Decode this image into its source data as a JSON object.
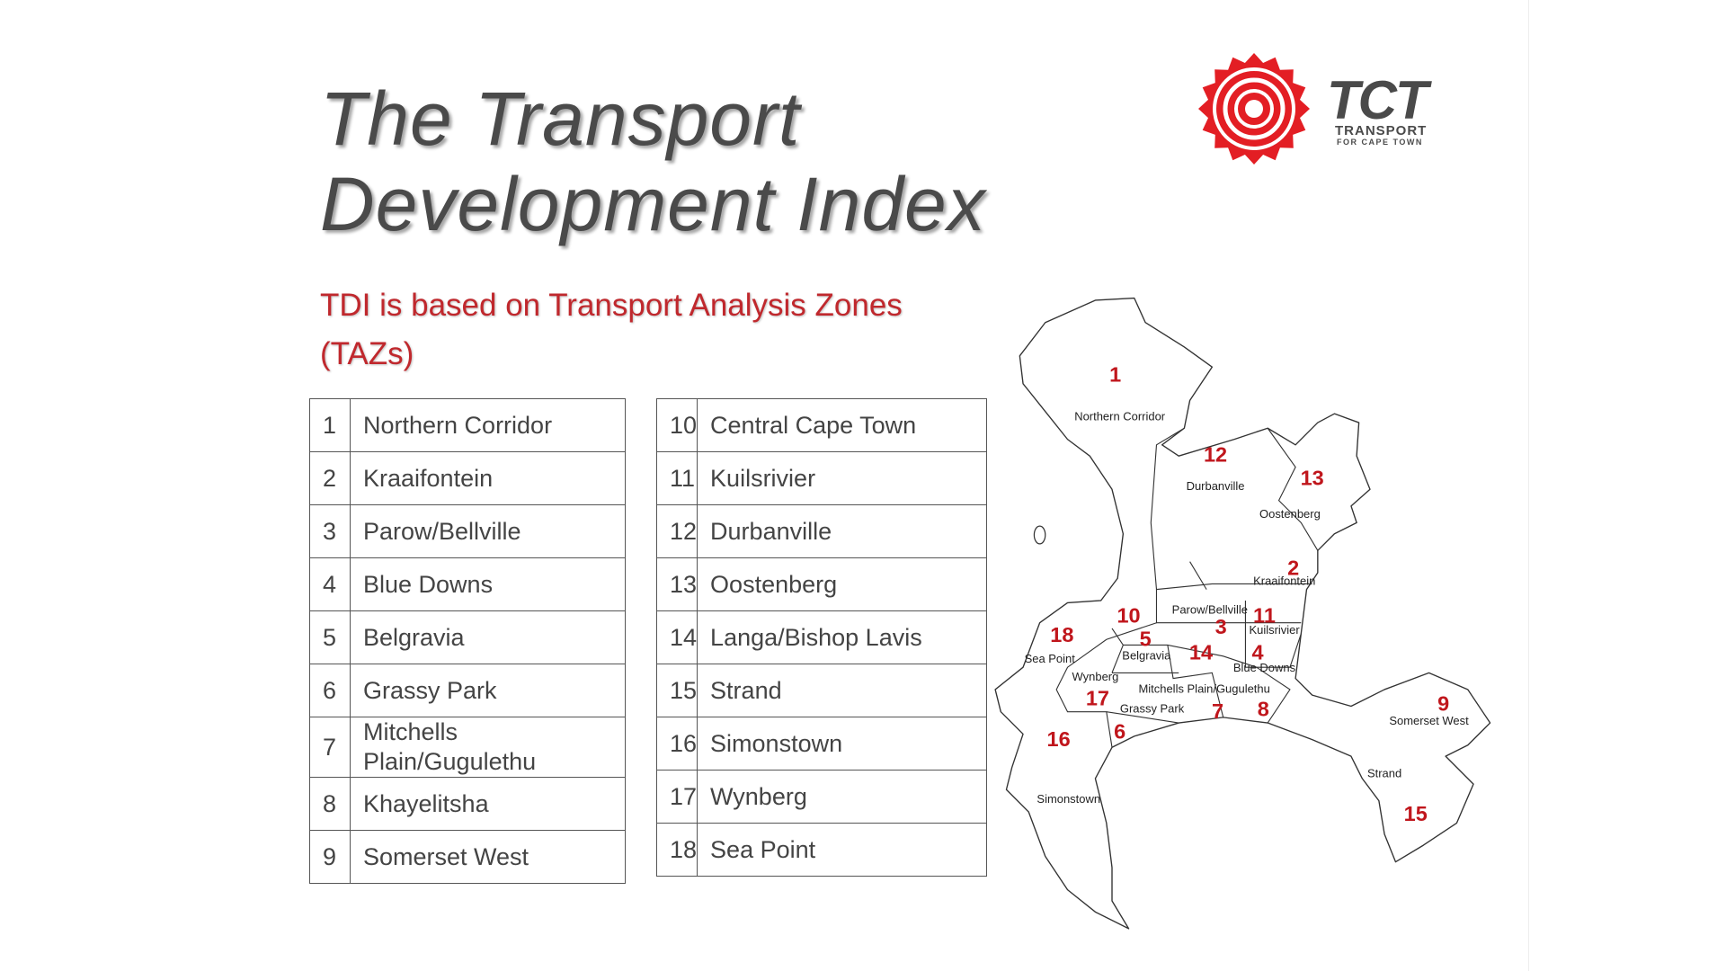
{
  "header": {
    "title_lines": [
      "The Transport",
      "Development Index"
    ],
    "subtitle_lines": [
      "TDI is based on Transport Analysis Zones",
      "(TAZs)"
    ]
  },
  "logo": {
    "name": "TCT",
    "tagline_lines": [
      "TRANSPORT",
      "FOR CAPE TOWN"
    ]
  },
  "tables": [
    {
      "rows": [
        [
          1,
          "Northern Corridor"
        ],
        [
          2,
          "Kraaifontein"
        ],
        [
          3,
          "Parow/Bellville"
        ],
        [
          4,
          "Blue Downs"
        ],
        [
          5,
          "Belgravia"
        ],
        [
          6,
          "Grassy Park"
        ],
        [
          7,
          "Mitchells Plain/Gugulethu"
        ],
        [
          8,
          "Khayelitsha"
        ],
        [
          9,
          "Somerset West"
        ]
      ]
    },
    {
      "rows": [
        [
          10,
          "Central Cape Town"
        ],
        [
          11,
          "Kuilsrivier"
        ],
        [
          12,
          "Durbanville"
        ],
        [
          13,
          "Oostenberg"
        ],
        [
          14,
          "Langa/Bishop Lavis"
        ],
        [
          15,
          "Strand"
        ],
        [
          16,
          "Simonstown"
        ],
        [
          17,
          "Wynberg"
        ],
        [
          18,
          "Sea Point"
        ]
      ]
    }
  ],
  "map": {
    "zone_numbers": [
      1,
      12,
      13,
      2,
      10,
      3,
      11,
      18,
      5,
      14,
      4,
      17,
      7,
      8,
      6,
      16,
      9,
      15
    ],
    "place_names": [
      "Northern Corridor",
      "Durbanville",
      "Oostenberg",
      "Kraaifontein",
      "Parow/Bellville",
      "Kuilsrivier",
      "Sea Point",
      "Belgravia",
      "Blue Downs",
      "Wynberg",
      "Mitchells Plain/Gugulethu",
      "Grassy Park",
      "Somerset West",
      "Strand",
      "Simonstown"
    ]
  }
}
